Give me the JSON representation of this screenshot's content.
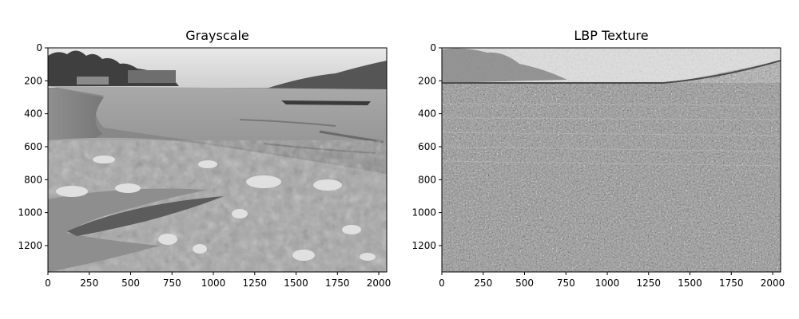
{
  "chart_data": [
    {
      "type": "image",
      "title": "Grayscale",
      "xlim": [
        0,
        2048
      ],
      "ylim": [
        1360,
        0
      ],
      "xticks": [
        0,
        250,
        500,
        750,
        1000,
        1250,
        1500,
        1750,
        2000
      ],
      "yticks": [
        0,
        200,
        400,
        600,
        800,
        1000,
        1200
      ],
      "grid": false,
      "colormap": "gray"
    },
    {
      "type": "image",
      "title": "LBP Texture",
      "xlim": [
        0,
        2048
      ],
      "ylim": [
        1360,
        0
      ],
      "xticks": [
        0,
        250,
        500,
        750,
        1000,
        1250,
        1500,
        1750,
        2000
      ],
      "yticks": [
        0,
        200,
        400,
        600,
        800,
        1000,
        1200
      ],
      "grid": false,
      "colormap": "gray"
    }
  ]
}
